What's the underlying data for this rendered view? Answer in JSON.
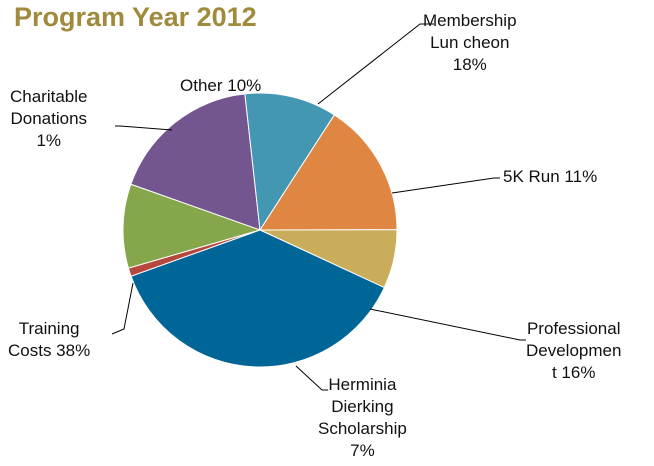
{
  "chart_data": {
    "type": "pie",
    "title": "Program Year 2012",
    "slices": [
      {
        "label": "Membership Luncheon",
        "value": 18,
        "color": "#735690"
      },
      {
        "label": "5K Run",
        "value": 11,
        "color": "#4397b2"
      },
      {
        "label": "Professional Development",
        "value": 16,
        "color": "#de8642"
      },
      {
        "label": "Herminia Dierking Scholarship",
        "value": 7,
        "color": "#c9ad5b"
      },
      {
        "label": "Training Costs",
        "value": 38,
        "color": "#006597"
      },
      {
        "label": "Charitable Donations",
        "value": 1,
        "color": "#b7473e"
      },
      {
        "label": "Other",
        "value": 10,
        "color": "#85a64a"
      }
    ],
    "data_labels": [
      {
        "lines": [
          "Membership",
          "Lun cheon",
          "18%"
        ]
      },
      {
        "lines": [
          "5K Run 11%"
        ]
      },
      {
        "lines": [
          "Professional",
          "Developmen",
          "t 16%"
        ]
      },
      {
        "lines": [
          "Herminia",
          "Dierking",
          "Scholarship",
          "7%"
        ]
      },
      {
        "lines": [
          "Training",
          "Costs 38%"
        ]
      },
      {
        "lines": [
          "Charitable",
          "Donations",
          "1%"
        ]
      },
      {
        "lines": [
          "Other 10%"
        ]
      }
    ]
  }
}
